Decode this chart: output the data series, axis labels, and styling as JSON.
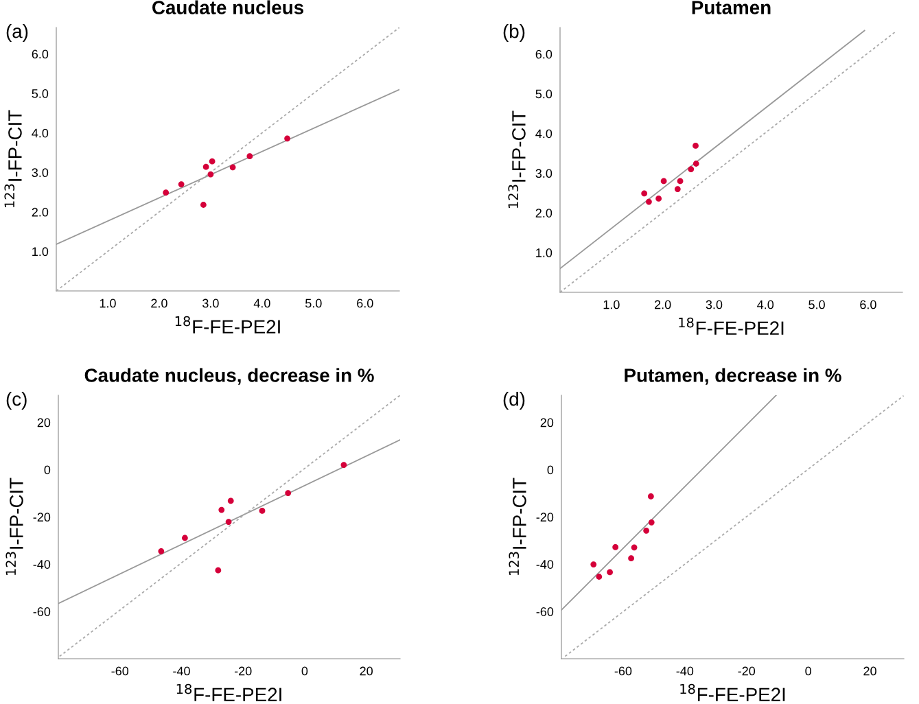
{
  "chart_data": [
    {
      "type": "scatter",
      "title": "Caudate nucleus",
      "xlabel": "$^{18}$F-FE-PE2I",
      "ylabel": "$^{123}$I-FP-CIT",
      "annotations": [
        "(a)"
      ],
      "xlim": [
        0,
        6.67
      ],
      "ylim": [
        0,
        6.67
      ],
      "xticks": [
        {
          "value": 1,
          "label": "1.0"
        },
        {
          "value": 2,
          "label": "2.0"
        },
        {
          "value": 3,
          "label": "3.0"
        },
        {
          "value": 4,
          "label": "4.0"
        },
        {
          "value": 5,
          "label": "5.0"
        },
        {
          "value": 6,
          "label": "6.0"
        }
      ],
      "yticks": [
        {
          "value": 1,
          "label": "1.0"
        },
        {
          "value": 2,
          "label": "2.0"
        },
        {
          "value": 3,
          "label": "3.0"
        },
        {
          "value": 4,
          "label": "4.0"
        },
        {
          "value": 5,
          "label": "5.0"
        },
        {
          "value": 6,
          "label": "6.0"
        }
      ],
      "grid": false,
      "legend": false,
      "series": [
        {
          "color": "#d5003a",
          "marker": "circle",
          "x": [
            2.13,
            2.43,
            2.86,
            2.91,
            3.03,
            3.0,
            3.43,
            3.76,
            4.49
          ],
          "values": [
            2.49,
            2.7,
            2.18,
            3.14,
            3.28,
            2.95,
            3.13,
            3.41,
            3.86
          ]
        },
        {
          "type": "line",
          "color": "#999999",
          "line_style": "solid",
          "x": [
            0,
            6.67
          ],
          "values": [
            1.18,
            5.1
          ]
        },
        {
          "type": "line",
          "color": "#aaaaaa",
          "line_style": "dashed",
          "x": [
            0,
            6.67
          ],
          "values": [
            0,
            6.67
          ]
        }
      ]
    },
    {
      "type": "scatter",
      "title": "Putamen",
      "xlabel": "$^{18}$F-FE-PE2I",
      "ylabel": "$^{123}$I-FP-CIT",
      "annotations": [
        "(b)"
      ],
      "xlim": [
        0,
        6.67
      ],
      "ylim": [
        0,
        6.67
      ],
      "xticks": [
        {
          "value": 1,
          "label": "1.0"
        },
        {
          "value": 2,
          "label": "2.0"
        },
        {
          "value": 3,
          "label": "3.0"
        },
        {
          "value": 4,
          "label": "4.0"
        },
        {
          "value": 5,
          "label": "5.0"
        },
        {
          "value": 6,
          "label": "6.0"
        }
      ],
      "yticks": [
        {
          "value": 1,
          "label": "1.0"
        },
        {
          "value": 2,
          "label": "2.0"
        },
        {
          "value": 3,
          "label": "3.0"
        },
        {
          "value": 4,
          "label": "4.0"
        },
        {
          "value": 5,
          "label": "5.0"
        },
        {
          "value": 6,
          "label": "6.0"
        }
      ],
      "grid": false,
      "legend": false,
      "series": [
        {
          "color": "#d5003a",
          "marker": "circle",
          "x": [
            1.64,
            1.73,
            1.92,
            2.02,
            2.29,
            2.34,
            2.55,
            2.64,
            2.65
          ],
          "values": [
            2.49,
            2.28,
            2.36,
            2.8,
            2.6,
            2.8,
            3.1,
            3.69,
            3.24
          ]
        },
        {
          "type": "line",
          "color": "#999999",
          "line_style": "solid",
          "x": [
            0,
            5.93
          ],
          "values": [
            0.6,
            6.59
          ]
        },
        {
          "type": "line",
          "color": "#aaaaaa",
          "line_style": "dashed",
          "x": [
            0,
            6.53
          ],
          "values": [
            0,
            6.56
          ]
        }
      ]
    },
    {
      "type": "scatter",
      "title": "Caudate nucleus, decrease in %",
      "xlabel": "$^{18}$F-FE-PE2I",
      "ylabel": "$^{123}$I-FP-CIT",
      "annotations": [
        "(c)"
      ],
      "xlim": [
        -80,
        31
      ],
      "ylim": [
        -80,
        31.5
      ],
      "xticks": [
        -60,
        -40,
        -20,
        0,
        20
      ],
      "yticks": [
        -60,
        -40,
        -20,
        0,
        20
      ],
      "grid": false,
      "legend": false,
      "series": [
        {
          "color": "#d5003a",
          "marker": "circle",
          "x": [
            -46.6,
            -38.9,
            -28.1,
            -27.0,
            -24.7,
            -24.0,
            -13.8,
            -5.4,
            12.7
          ],
          "values": [
            -34.5,
            -28.9,
            -42.6,
            -17.0,
            -22.1,
            -13.2,
            -17.4,
            -9.9,
            2.0
          ]
        },
        {
          "type": "line",
          "color": "#999999",
          "line_style": "solid",
          "x": [
            -80,
            31
          ],
          "values": [
            -56.6,
            12.6
          ]
        },
        {
          "type": "line",
          "color": "#aaaaaa",
          "line_style": "dashed",
          "x": [
            -79.6,
            31
          ],
          "values": [
            -79,
            31.5
          ]
        }
      ]
    },
    {
      "type": "scatter",
      "title": "Putamen, decrease in %",
      "xlabel": "$^{18}$F-FE-PE2I",
      "ylabel": "$^{123}$I-FP-CIT",
      "annotations": [
        "(d)"
      ],
      "xlim": [
        -80,
        31
      ],
      "ylim": [
        -80,
        31.5
      ],
      "xticks": [
        -60,
        -40,
        -20,
        0,
        20
      ],
      "yticks": [
        -60,
        -40,
        -20,
        0,
        20
      ],
      "grid": false,
      "legend": false,
      "series": [
        {
          "color": "#d5003a",
          "marker": "circle",
          "x": [
            -69.6,
            -67.8,
            -64.3,
            -62.5,
            -57.4,
            -56.4,
            -52.5,
            -51.0,
            -50.8
          ],
          "values": [
            -40.1,
            -45.3,
            -43.4,
            -32.8,
            -37.5,
            -32.9,
            -25.8,
            -11.3,
            -22.3
          ]
        },
        {
          "type": "line",
          "color": "#999999",
          "line_style": "solid",
          "x": [
            -80,
            -10.4
          ],
          "values": [
            -59.4,
            31.5
          ]
        },
        {
          "type": "line",
          "color": "#aaaaaa",
          "line_style": "dashed",
          "x": [
            -78.8,
            30.9
          ],
          "values": [
            -79,
            31.3
          ]
        }
      ]
    }
  ]
}
